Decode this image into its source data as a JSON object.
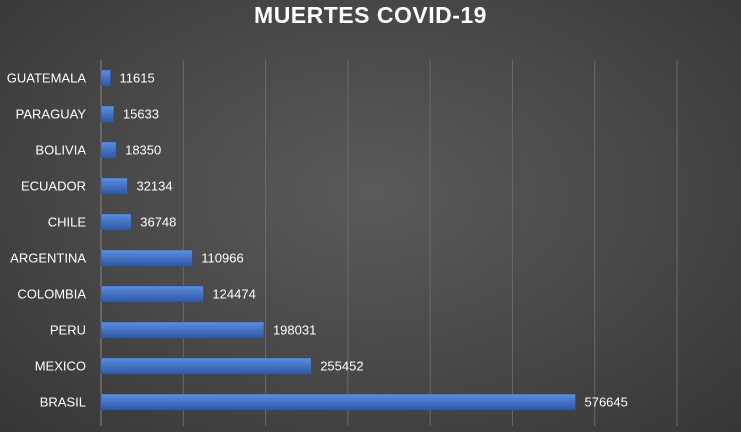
{
  "chart_data": {
    "type": "bar",
    "orientation": "horizontal",
    "title": "MUERTES COVID-19",
    "xlabel": "",
    "ylabel": "",
    "categories": [
      "GUATEMALA",
      "PARAGUAY",
      "BOLIVIA",
      "ECUADOR",
      "CHILE",
      "ARGENTINA",
      "COLOMBIA",
      "PERU",
      "MEXICO",
      "BRASIL"
    ],
    "values": [
      11615,
      15633,
      18350,
      32134,
      36748,
      110966,
      124474,
      198031,
      255452,
      576645
    ],
    "xlim": [
      0,
      700000
    ],
    "grid": true,
    "legend": "none",
    "colors": {
      "bar": "#4472c4",
      "background": "#474747",
      "gridline": "#6a6a6a",
      "text": "#ffffff"
    }
  }
}
